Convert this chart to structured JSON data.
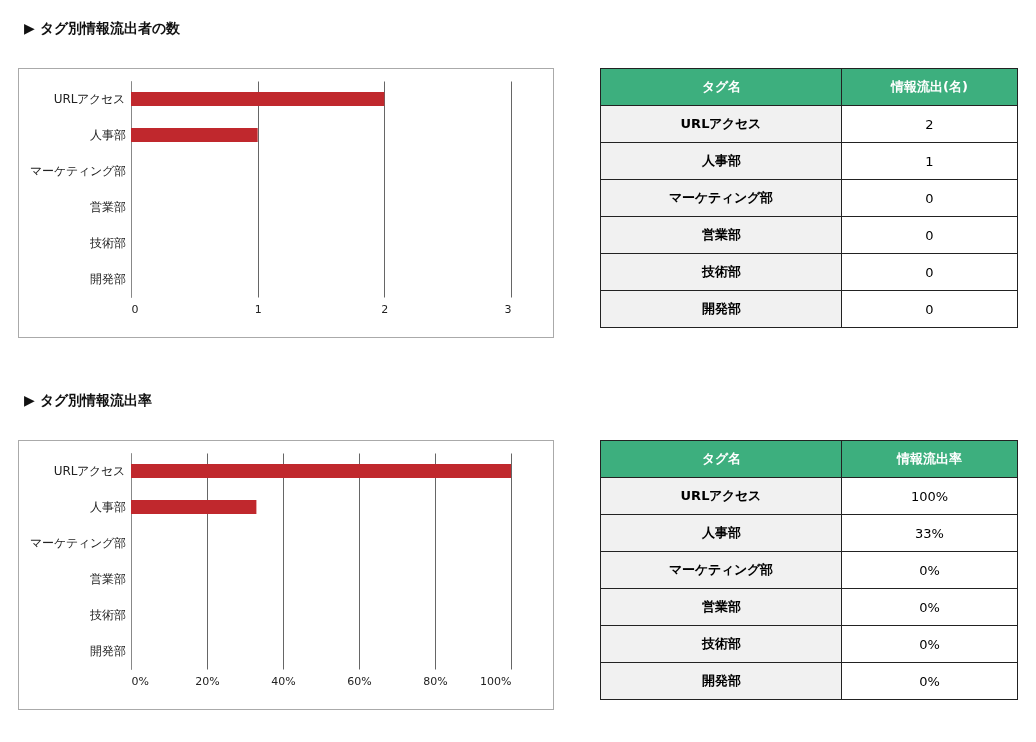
{
  "chart_data": [
    {
      "type": "bar",
      "orientation": "horizontal",
      "title": "▶ タグ別情報流出者の数",
      "categories": [
        "URLアクセス",
        "人事部",
        "マーケティング部",
        "営業部",
        "技術部",
        "開発部"
      ],
      "values": [
        2,
        1,
        0,
        0,
        0,
        0
      ],
      "color": "#c0282d",
      "xlim": [
        0,
        3
      ],
      "xticks": [
        0,
        1,
        2,
        3
      ],
      "grid": "x",
      "value_labels": [
        "2",
        "1",
        "0",
        "0",
        "0",
        "0"
      ],
      "annotations": [
        "タグ名",
        "情報流出(名)"
      ]
    },
    {
      "type": "bar",
      "orientation": "horizontal",
      "title": "▶ タグ別情報流出率",
      "categories": [
        "URLアクセス",
        "人事部",
        "マーケティング部",
        "営業部",
        "技術部",
        "開発部"
      ],
      "values": [
        100,
        33,
        0,
        0,
        0,
        0
      ],
      "color": "#c0282d",
      "xlim": [
        0,
        100
      ],
      "xticks": [
        {
          "value": 0,
          "label": "0%"
        },
        {
          "value": 20,
          "label": "20%"
        },
        {
          "value": 40,
          "label": "40%"
        },
        {
          "value": 60,
          "label": "60%"
        },
        {
          "value": 80,
          "label": "80%"
        },
        {
          "value": 100,
          "label": "100%"
        }
      ],
      "grid": "x",
      "value_labels": [
        "100%",
        "33%",
        "0%",
        "0%",
        "0%",
        "0%"
      ],
      "annotations": [
        "タグ名",
        "情報流出率"
      ]
    }
  ]
}
